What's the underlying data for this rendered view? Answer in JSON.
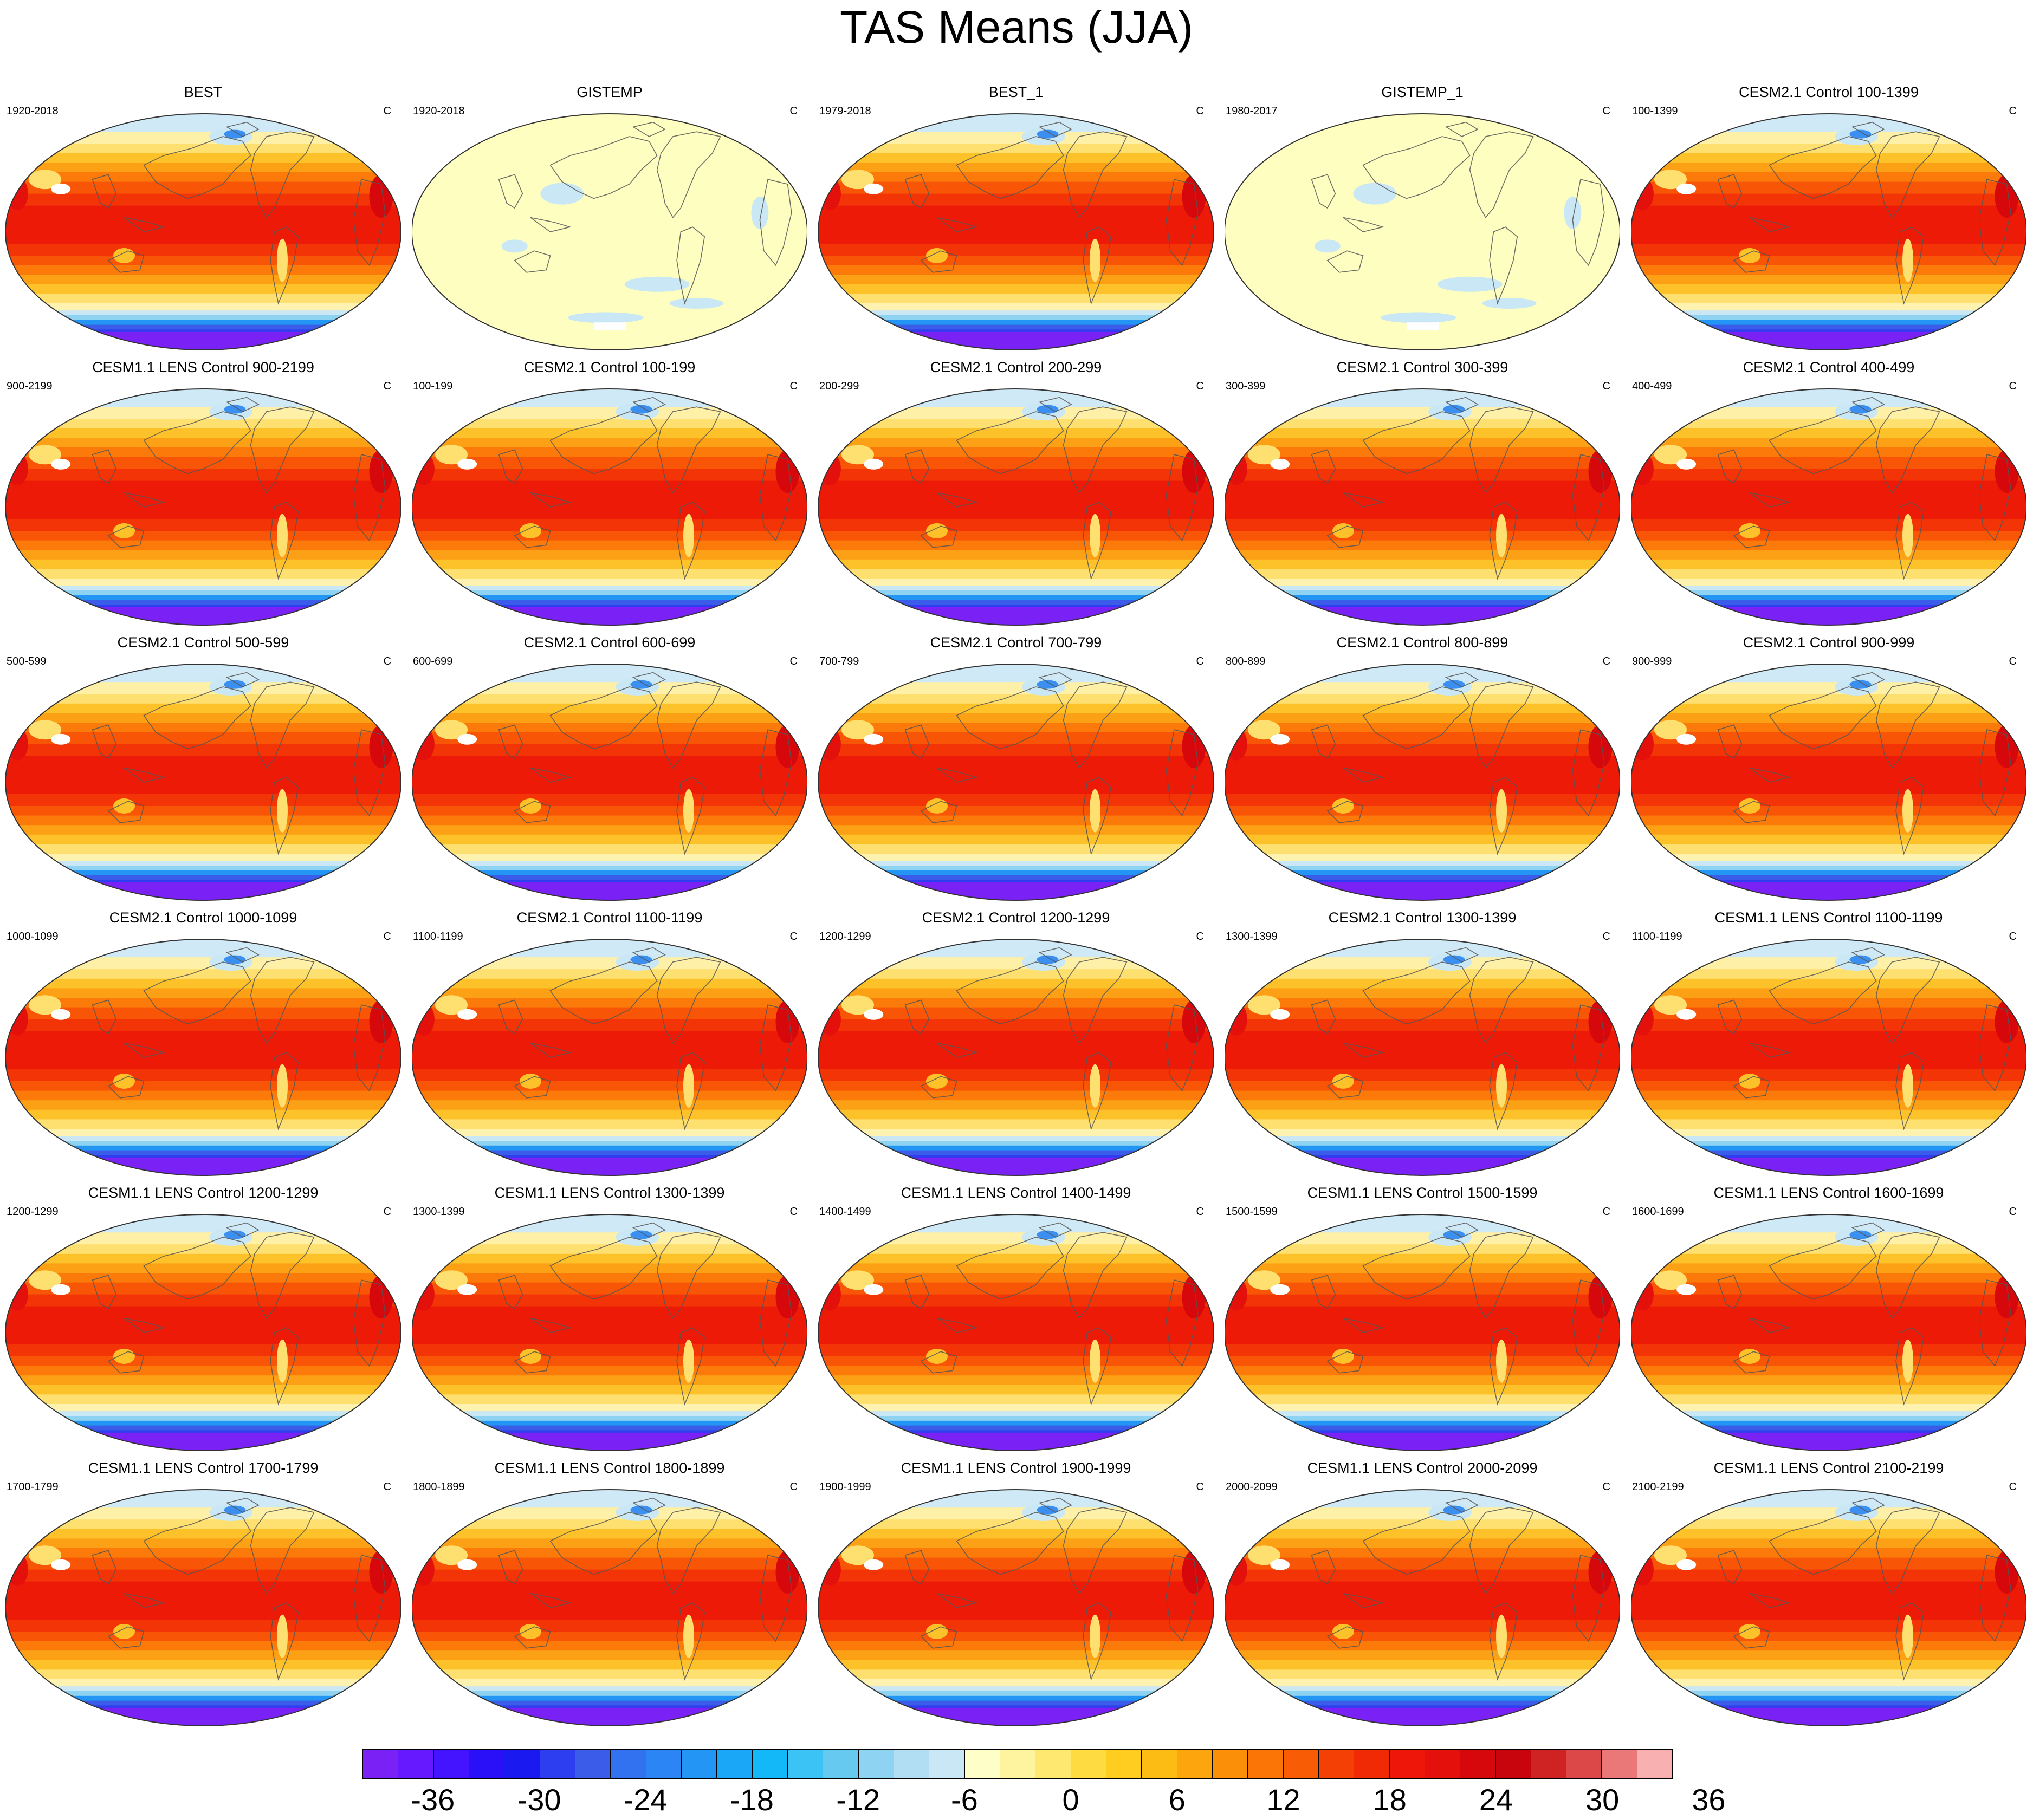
{
  "title": "TAS Means (JJA)",
  "units_label": "C",
  "panels": [
    {
      "title": "BEST",
      "period": "1920-2018",
      "kind": "model"
    },
    {
      "title": "GISTEMP",
      "period": "1920-2018",
      "kind": "anomaly"
    },
    {
      "title": "BEST_1",
      "period": "1979-2018",
      "kind": "model"
    },
    {
      "title": "GISTEMP_1",
      "period": "1980-2017",
      "kind": "anomaly"
    },
    {
      "title": "CESM2.1 Control 100-1399",
      "period": "100-1399",
      "kind": "model"
    },
    {
      "title": "CESM1.1 LENS Control 900-2199",
      "period": "900-2199",
      "kind": "model"
    },
    {
      "title": "CESM2.1 Control 100-199",
      "period": "100-199",
      "kind": "model"
    },
    {
      "title": "CESM2.1 Control 200-299",
      "period": "200-299",
      "kind": "model"
    },
    {
      "title": "CESM2.1 Control 300-399",
      "period": "300-399",
      "kind": "model"
    },
    {
      "title": "CESM2.1 Control 400-499",
      "period": "400-499",
      "kind": "model"
    },
    {
      "title": "CESM2.1 Control 500-599",
      "period": "500-599",
      "kind": "model"
    },
    {
      "title": "CESM2.1 Control 600-699",
      "period": "600-699",
      "kind": "model"
    },
    {
      "title": "CESM2.1 Control 700-799",
      "period": "700-799",
      "kind": "model"
    },
    {
      "title": "CESM2.1 Control 800-899",
      "period": "800-899",
      "kind": "model"
    },
    {
      "title": "CESM2.1 Control 900-999",
      "period": "900-999",
      "kind": "model"
    },
    {
      "title": "CESM2.1 Control 1000-1099",
      "period": "1000-1099",
      "kind": "model"
    },
    {
      "title": "CESM2.1 Control 1100-1199",
      "period": "1100-1199",
      "kind": "model"
    },
    {
      "title": "CESM2.1 Control 1200-1299",
      "period": "1200-1299",
      "kind": "model"
    },
    {
      "title": "CESM2.1 Control 1300-1399",
      "period": "1300-1399",
      "kind": "model"
    },
    {
      "title": "CESM1.1 LENS Control 1100-1199",
      "period": "1100-1199",
      "kind": "model"
    },
    {
      "title": "CESM1.1 LENS Control 1200-1299",
      "period": "1200-1299",
      "kind": "model"
    },
    {
      "title": "CESM1.1 LENS Control 1300-1399",
      "period": "1300-1399",
      "kind": "model"
    },
    {
      "title": "CESM1.1 LENS Control 1400-1499",
      "period": "1400-1499",
      "kind": "model"
    },
    {
      "title": "CESM1.1 LENS Control 1500-1599",
      "period": "1500-1599",
      "kind": "model"
    },
    {
      "title": "CESM1.1 LENS Control 1600-1699",
      "period": "1600-1699",
      "kind": "model"
    },
    {
      "title": "CESM1.1 LENS Control 1700-1799",
      "period": "1700-1799",
      "kind": "model"
    },
    {
      "title": "CESM1.1 LENS Control 1800-1899",
      "period": "1800-1899",
      "kind": "model"
    },
    {
      "title": "CESM1.1 LENS Control 1900-1999",
      "period": "1900-1999",
      "kind": "model"
    },
    {
      "title": "CESM1.1 LENS Control 2000-2099",
      "period": "2000-2099",
      "kind": "model"
    },
    {
      "title": "CESM1.1 LENS Control 2100-2199",
      "period": "2100-2199",
      "kind": "model"
    }
  ],
  "colorbar": {
    "colors": [
      "#7a21f5",
      "#6619ff",
      "#4413ff",
      "#2a10f8",
      "#1919f0",
      "#2d3df0",
      "#3a5ce8",
      "#3272f0",
      "#2b85f5",
      "#2396f5",
      "#1aa7f7",
      "#12b8f8",
      "#3cc3f5",
      "#66c9f0",
      "#8ed4f2",
      "#b2def4",
      "#c9e7f4",
      "#fefec8",
      "#fef4a0",
      "#fee870",
      "#fedb40",
      "#fecd20",
      "#fdbc14",
      "#fda50c",
      "#fc8f08",
      "#fb7506",
      "#f85c04",
      "#f44004",
      "#f02a04",
      "#ee1608",
      "#e4100c",
      "#d6080c",
      "#c8040c",
      "#cf2222",
      "#dc4848",
      "#ea7878",
      "#f9b0b0"
    ],
    "tick_labels": [
      "-36",
      "-30",
      "-24",
      "-18",
      "-12",
      "-6",
      "0",
      "6",
      "12",
      "18",
      "24",
      "30",
      "36"
    ]
  }
}
